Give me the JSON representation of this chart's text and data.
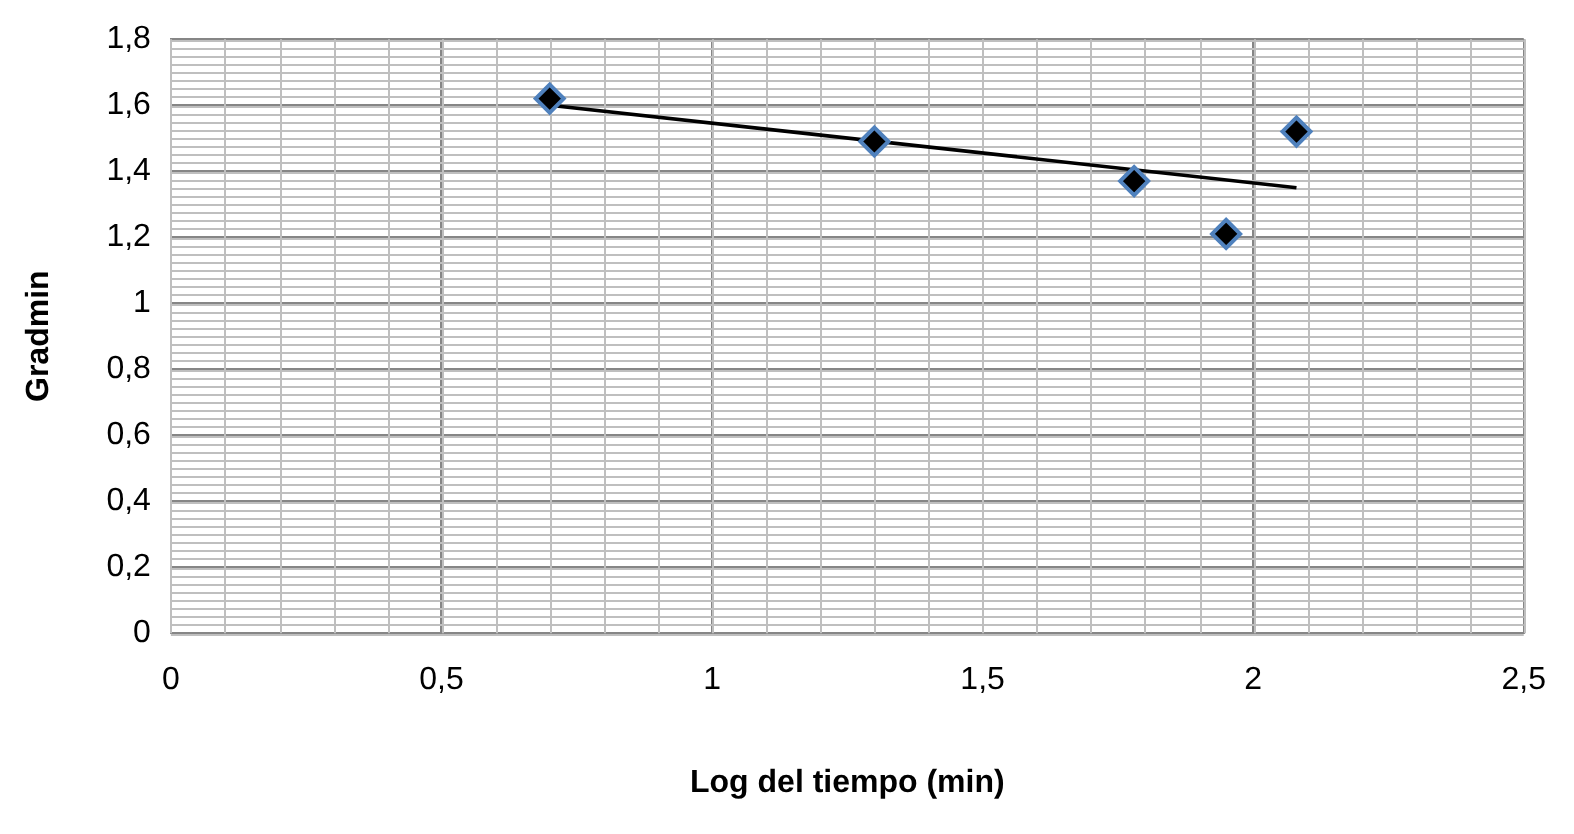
{
  "chart_data": {
    "type": "scatter",
    "xlabel": "Log del tiempo (min)",
    "ylabel": "Gradmin",
    "xlim": [
      0,
      2.5
    ],
    "xticks": [
      {
        "value": 0,
        "label": "0"
      },
      {
        "value": 0.5,
        "label": "0,5"
      },
      {
        "value": 1,
        "label": "1"
      },
      {
        "value": 1.5,
        "label": "1,5"
      },
      {
        "value": 2,
        "label": "2"
      },
      {
        "value": 2.5,
        "label": "2,5"
      }
    ],
    "ylim": [
      0,
      1.8
    ],
    "yticks": [
      {
        "value": 0,
        "label": "0"
      },
      {
        "value": 0.2,
        "label": "0,2"
      },
      {
        "value": 0.4,
        "label": "0,4"
      },
      {
        "value": 0.6,
        "label": "0,6"
      },
      {
        "value": 0.8,
        "label": "0,8"
      },
      {
        "value": 1,
        "label": "1"
      },
      {
        "value": 1.2,
        "label": "1,2"
      },
      {
        "value": 1.4,
        "label": "1,4"
      },
      {
        "value": 1.6,
        "label": "1,6"
      },
      {
        "value": 1.8,
        "label": "1,8"
      }
    ],
    "grid": true,
    "legend": false,
    "series": [
      {
        "type": "scatter",
        "color": "#000000",
        "marker": "diamond",
        "x": [
          0.7,
          1.3,
          1.78,
          1.95,
          2.08
        ],
        "values": [
          1.62,
          1.49,
          1.37,
          1.21,
          1.52
        ]
      },
      {
        "type": "line",
        "color": "#000000",
        "marker": "none",
        "line_style": "solid",
        "x": [
          0.7,
          2.08
        ],
        "values": [
          1.6,
          1.35
        ]
      }
    ]
  }
}
